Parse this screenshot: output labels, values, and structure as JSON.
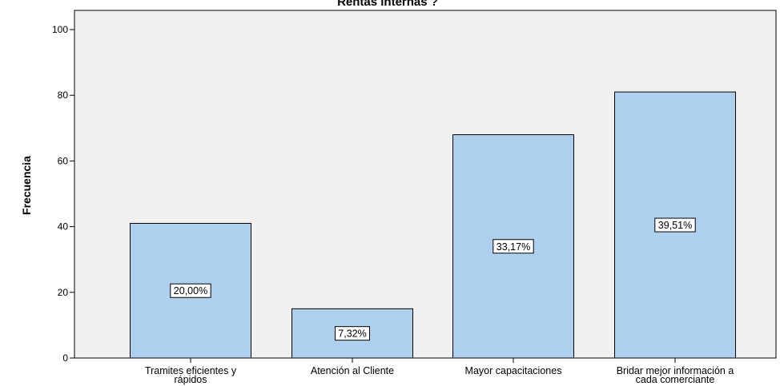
{
  "chart_data": {
    "type": "bar",
    "title": "Rentas internas ?",
    "ylabel": "Frecuencia",
    "xlabel": "",
    "ylim": [
      0,
      100
    ],
    "yticks": [
      0,
      20,
      40,
      60,
      80,
      100
    ],
    "grid": false,
    "categories": [
      [
        "Tramites eficientes y",
        "rápidos"
      ],
      [
        "Atención al Cliente"
      ],
      [
        "Mayor capacitaciones"
      ],
      [
        "Bridar mejor información a",
        "cada comerciante"
      ]
    ],
    "values": [
      41,
      15,
      68,
      81
    ],
    "data_labels": [
      "20,00%",
      "7,32%",
      "33,17%",
      "39,51%"
    ],
    "colors": {
      "bar_fill": "#aecfee",
      "bar_stroke": "#000000",
      "plot_bg": "#f0f0f0",
      "label_box": "#ffffff"
    }
  }
}
